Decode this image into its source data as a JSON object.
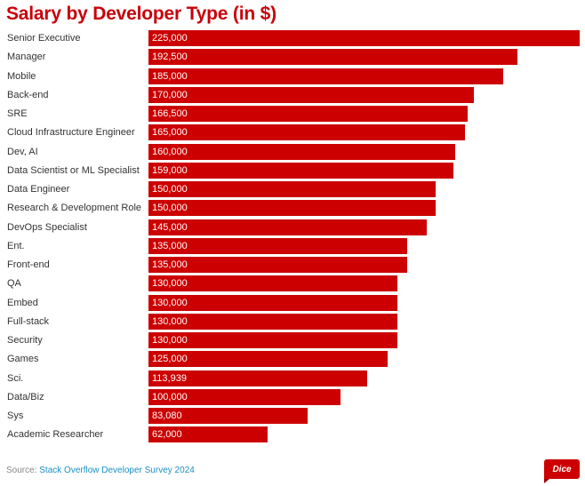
{
  "chart_data": {
    "type": "bar",
    "orientation": "horizontal",
    "title": "Salary by Developer Type (in $)",
    "xlabel": "",
    "ylabel": "",
    "xlim": [
      0,
      225000
    ],
    "grid": false,
    "legend": "none",
    "bar_color": "#cc0000",
    "categories": [
      "Senior Executive",
      "Manager",
      "Mobile",
      "Back-end",
      "SRE",
      "Cloud Infrastructure Engineer",
      "Dev, AI",
      "Data Scientist or ML Specialist",
      "Data Engineer",
      "Research & Development Role",
      "DevOps Specialist",
      "Ent.",
      "Front-end",
      "QA",
      "Embed",
      "Full-stack",
      "Security",
      "Games",
      "Sci.",
      "Data/Biz",
      "Sys",
      "Academic Researcher"
    ],
    "values": [
      225000,
      192500,
      185000,
      170000,
      166500,
      165000,
      160000,
      159000,
      150000,
      150000,
      145000,
      135000,
      135000,
      130000,
      130000,
      130000,
      130000,
      125000,
      113939,
      100000,
      83080,
      62000
    ],
    "value_labels": [
      "225,000",
      "192,500",
      "185,000",
      "170,000",
      "166,500",
      "165,000",
      "160,000",
      "159,000",
      "150,000",
      "150,000",
      "145,000",
      "135,000",
      "135,000",
      "130,000",
      "130,000",
      "130,000",
      "130,000",
      "125,000",
      "113,939",
      "100,000",
      "83,080",
      "62,000"
    ]
  },
  "footer": {
    "source_prefix": "Source: ",
    "source_link": "Stack Overflow Developer Survey 2024",
    "logo_text": "Dice"
  },
  "colors": {
    "title": "#c8000a",
    "bar": "#cc0000",
    "link": "#1a8fc4"
  }
}
